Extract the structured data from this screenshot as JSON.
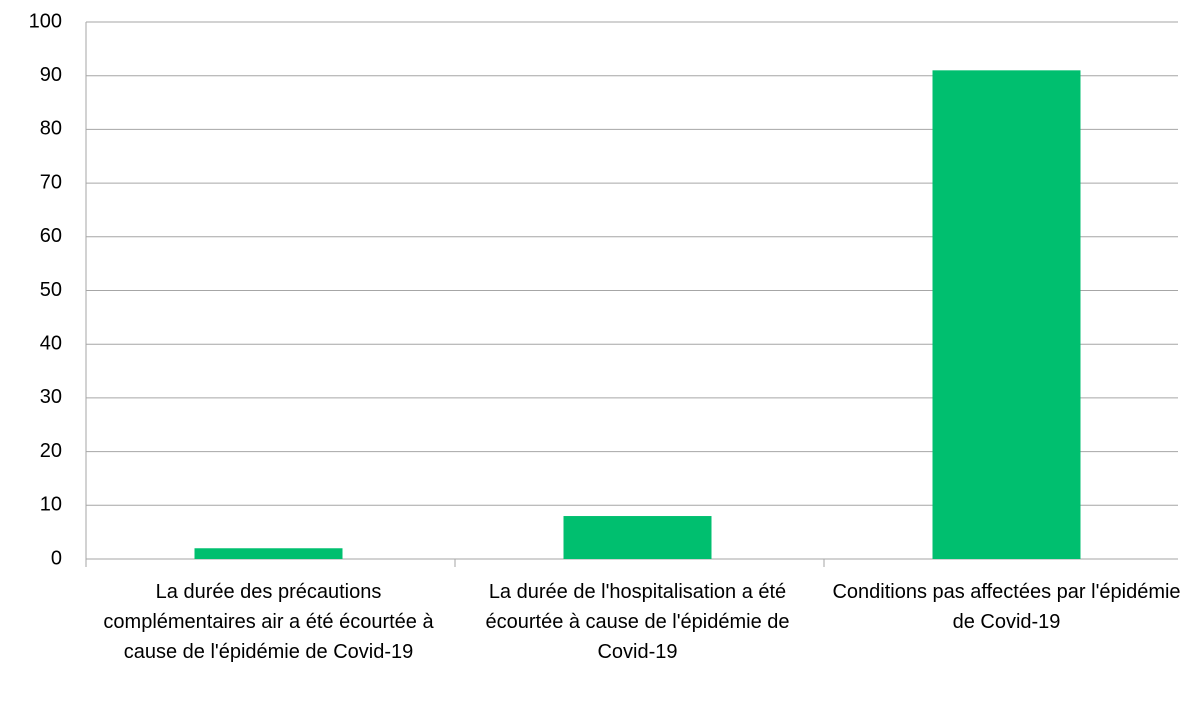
{
  "chart_data": {
    "type": "bar",
    "categories": [
      "La durée des précautions complémentaires air a été écourtée à cause de l'épidémie de Covid-19",
      "La durée de l'hospitalisation a été écourtée à cause de l'épidémie de Covid-19",
      "Conditions pas affectées par l'épidémie de Covid-19"
    ],
    "values": [
      2,
      8,
      91
    ],
    "color": "#00bf6f",
    "ylim": [
      0,
      100
    ],
    "yticks": [
      0,
      10,
      20,
      30,
      40,
      50,
      60,
      70,
      80,
      90,
      100
    ],
    "grid": true
  }
}
